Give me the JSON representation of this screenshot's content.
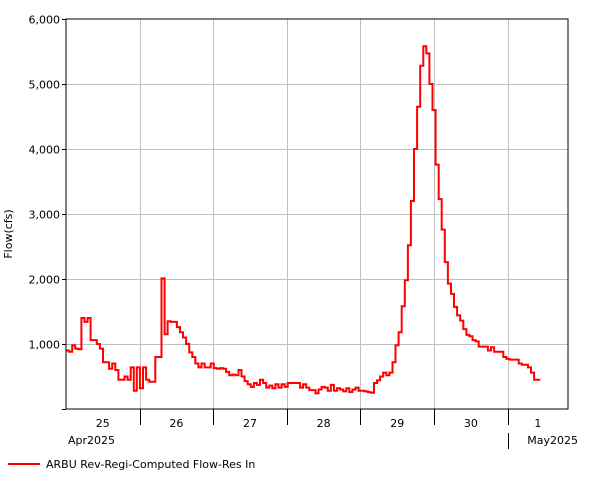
{
  "chart_data": {
    "type": "line",
    "step": true,
    "ylabel": "Flow(cfs)",
    "ylim": [
      0,
      6000
    ],
    "yticks": [
      0,
      1000,
      2000,
      3000,
      4000,
      5000,
      6000
    ],
    "ytick_labels": [
      "",
      "1,000",
      "2,000",
      "3,000",
      "4,000",
      "5,000",
      "6,000"
    ],
    "xlim": [
      0,
      163
    ],
    "x_units": "hours since 2025-04-25 00:00 (x=0 at left edge = Apr 25 ~01:00)",
    "day_ticks": [
      {
        "label": "25",
        "x": 0
      },
      {
        "label": "26",
        "x": 23.9
      },
      {
        "label": "27",
        "x": 47.8
      },
      {
        "label": "28",
        "x": 71.7
      },
      {
        "label": "29",
        "x": 95.6
      },
      {
        "label": "30",
        "x": 119.5
      },
      {
        "label": "1",
        "x": 143.4
      }
    ],
    "month_labels": [
      "Apr2025",
      "May2025"
    ],
    "grid": true,
    "legend_position": "bottom",
    "series": [
      {
        "name": "ARBU Rev-Regi-Computed Flow-Res In",
        "color": "#ff0000",
        "points": [
          [
            0,
            900
          ],
          [
            1,
            880
          ],
          [
            2,
            980
          ],
          [
            3,
            930
          ],
          [
            4,
            920
          ],
          [
            5,
            1400
          ],
          [
            6,
            1340
          ],
          [
            7,
            1400
          ],
          [
            8,
            1060
          ],
          [
            9,
            1060
          ],
          [
            10,
            1000
          ],
          [
            11,
            930
          ],
          [
            12,
            720
          ],
          [
            13,
            720
          ],
          [
            14,
            620
          ],
          [
            15,
            700
          ],
          [
            16,
            600
          ],
          [
            17,
            450
          ],
          [
            18,
            450
          ],
          [
            19,
            500
          ],
          [
            20,
            450
          ],
          [
            21,
            640
          ],
          [
            22,
            280
          ],
          [
            23,
            640
          ],
          [
            24,
            320
          ],
          [
            25,
            640
          ],
          [
            26,
            450
          ],
          [
            27,
            420
          ],
          [
            29,
            800
          ],
          [
            30,
            800
          ],
          [
            31,
            2010
          ],
          [
            32,
            1150
          ],
          [
            33,
            1350
          ],
          [
            34,
            1340
          ],
          [
            35,
            1340
          ],
          [
            36,
            1260
          ],
          [
            37,
            1180
          ],
          [
            38,
            1100
          ],
          [
            39,
            1000
          ],
          [
            40,
            870
          ],
          [
            41,
            800
          ],
          [
            42,
            700
          ],
          [
            43,
            640
          ],
          [
            44,
            700
          ],
          [
            45,
            640
          ],
          [
            46,
            640
          ],
          [
            47,
            700
          ],
          [
            48,
            630
          ],
          [
            49,
            620
          ],
          [
            50,
            630
          ],
          [
            51,
            620
          ],
          [
            52,
            570
          ],
          [
            53,
            520
          ],
          [
            54,
            530
          ],
          [
            55,
            520
          ],
          [
            56,
            600
          ],
          [
            57,
            500
          ],
          [
            58,
            430
          ],
          [
            59,
            380
          ],
          [
            60,
            340
          ],
          [
            61,
            400
          ],
          [
            62,
            370
          ],
          [
            63,
            450
          ],
          [
            64,
            400
          ],
          [
            65,
            330
          ],
          [
            66,
            360
          ],
          [
            67,
            320
          ],
          [
            68,
            380
          ],
          [
            69,
            330
          ],
          [
            70,
            380
          ],
          [
            71,
            340
          ],
          [
            72,
            400
          ],
          [
            73,
            400
          ],
          [
            74,
            400
          ],
          [
            75,
            400
          ],
          [
            76,
            330
          ],
          [
            77,
            380
          ],
          [
            78,
            330
          ],
          [
            79,
            290
          ],
          [
            80,
            290
          ],
          [
            81,
            240
          ],
          [
            82,
            300
          ],
          [
            83,
            340
          ],
          [
            84,
            330
          ],
          [
            85,
            280
          ],
          [
            86,
            370
          ],
          [
            87,
            280
          ],
          [
            88,
            320
          ],
          [
            89,
            300
          ],
          [
            90,
            270
          ],
          [
            91,
            320
          ],
          [
            92,
            260
          ],
          [
            93,
            300
          ],
          [
            94,
            330
          ],
          [
            95,
            280
          ],
          [
            96,
            280
          ],
          [
            97,
            270
          ],
          [
            98,
            260
          ],
          [
            99,
            250
          ],
          [
            100,
            400
          ],
          [
            101,
            440
          ],
          [
            102,
            500
          ],
          [
            103,
            560
          ],
          [
            104,
            520
          ],
          [
            105,
            560
          ],
          [
            106,
            720
          ],
          [
            107,
            980
          ],
          [
            108,
            1180
          ],
          [
            109,
            1580
          ],
          [
            110,
            1980
          ],
          [
            111,
            2520
          ],
          [
            112,
            3200
          ],
          [
            113,
            4000
          ],
          [
            114,
            4650
          ],
          [
            115,
            5280
          ],
          [
            116,
            5580
          ],
          [
            117,
            5470
          ],
          [
            118,
            5000
          ],
          [
            119,
            4600
          ],
          [
            120,
            3760
          ],
          [
            121,
            3230
          ],
          [
            122,
            2760
          ],
          [
            123,
            2260
          ],
          [
            124,
            1930
          ],
          [
            125,
            1770
          ],
          [
            126,
            1570
          ],
          [
            127,
            1440
          ],
          [
            128,
            1360
          ],
          [
            129,
            1230
          ],
          [
            130,
            1140
          ],
          [
            131,
            1120
          ],
          [
            132,
            1060
          ],
          [
            133,
            1040
          ],
          [
            134,
            960
          ],
          [
            135,
            960
          ],
          [
            136,
            960
          ],
          [
            137,
            900
          ],
          [
            138,
            950
          ],
          [
            139,
            880
          ],
          [
            140,
            880
          ],
          [
            141,
            880
          ],
          [
            142,
            800
          ],
          [
            143,
            770
          ],
          [
            144,
            760
          ],
          [
            145,
            760
          ],
          [
            146,
            760
          ],
          [
            147,
            700
          ],
          [
            148,
            680
          ],
          [
            149,
            680
          ],
          [
            150,
            640
          ],
          [
            151,
            560
          ],
          [
            152,
            450
          ],
          [
            153,
            450
          ]
        ]
      }
    ]
  }
}
